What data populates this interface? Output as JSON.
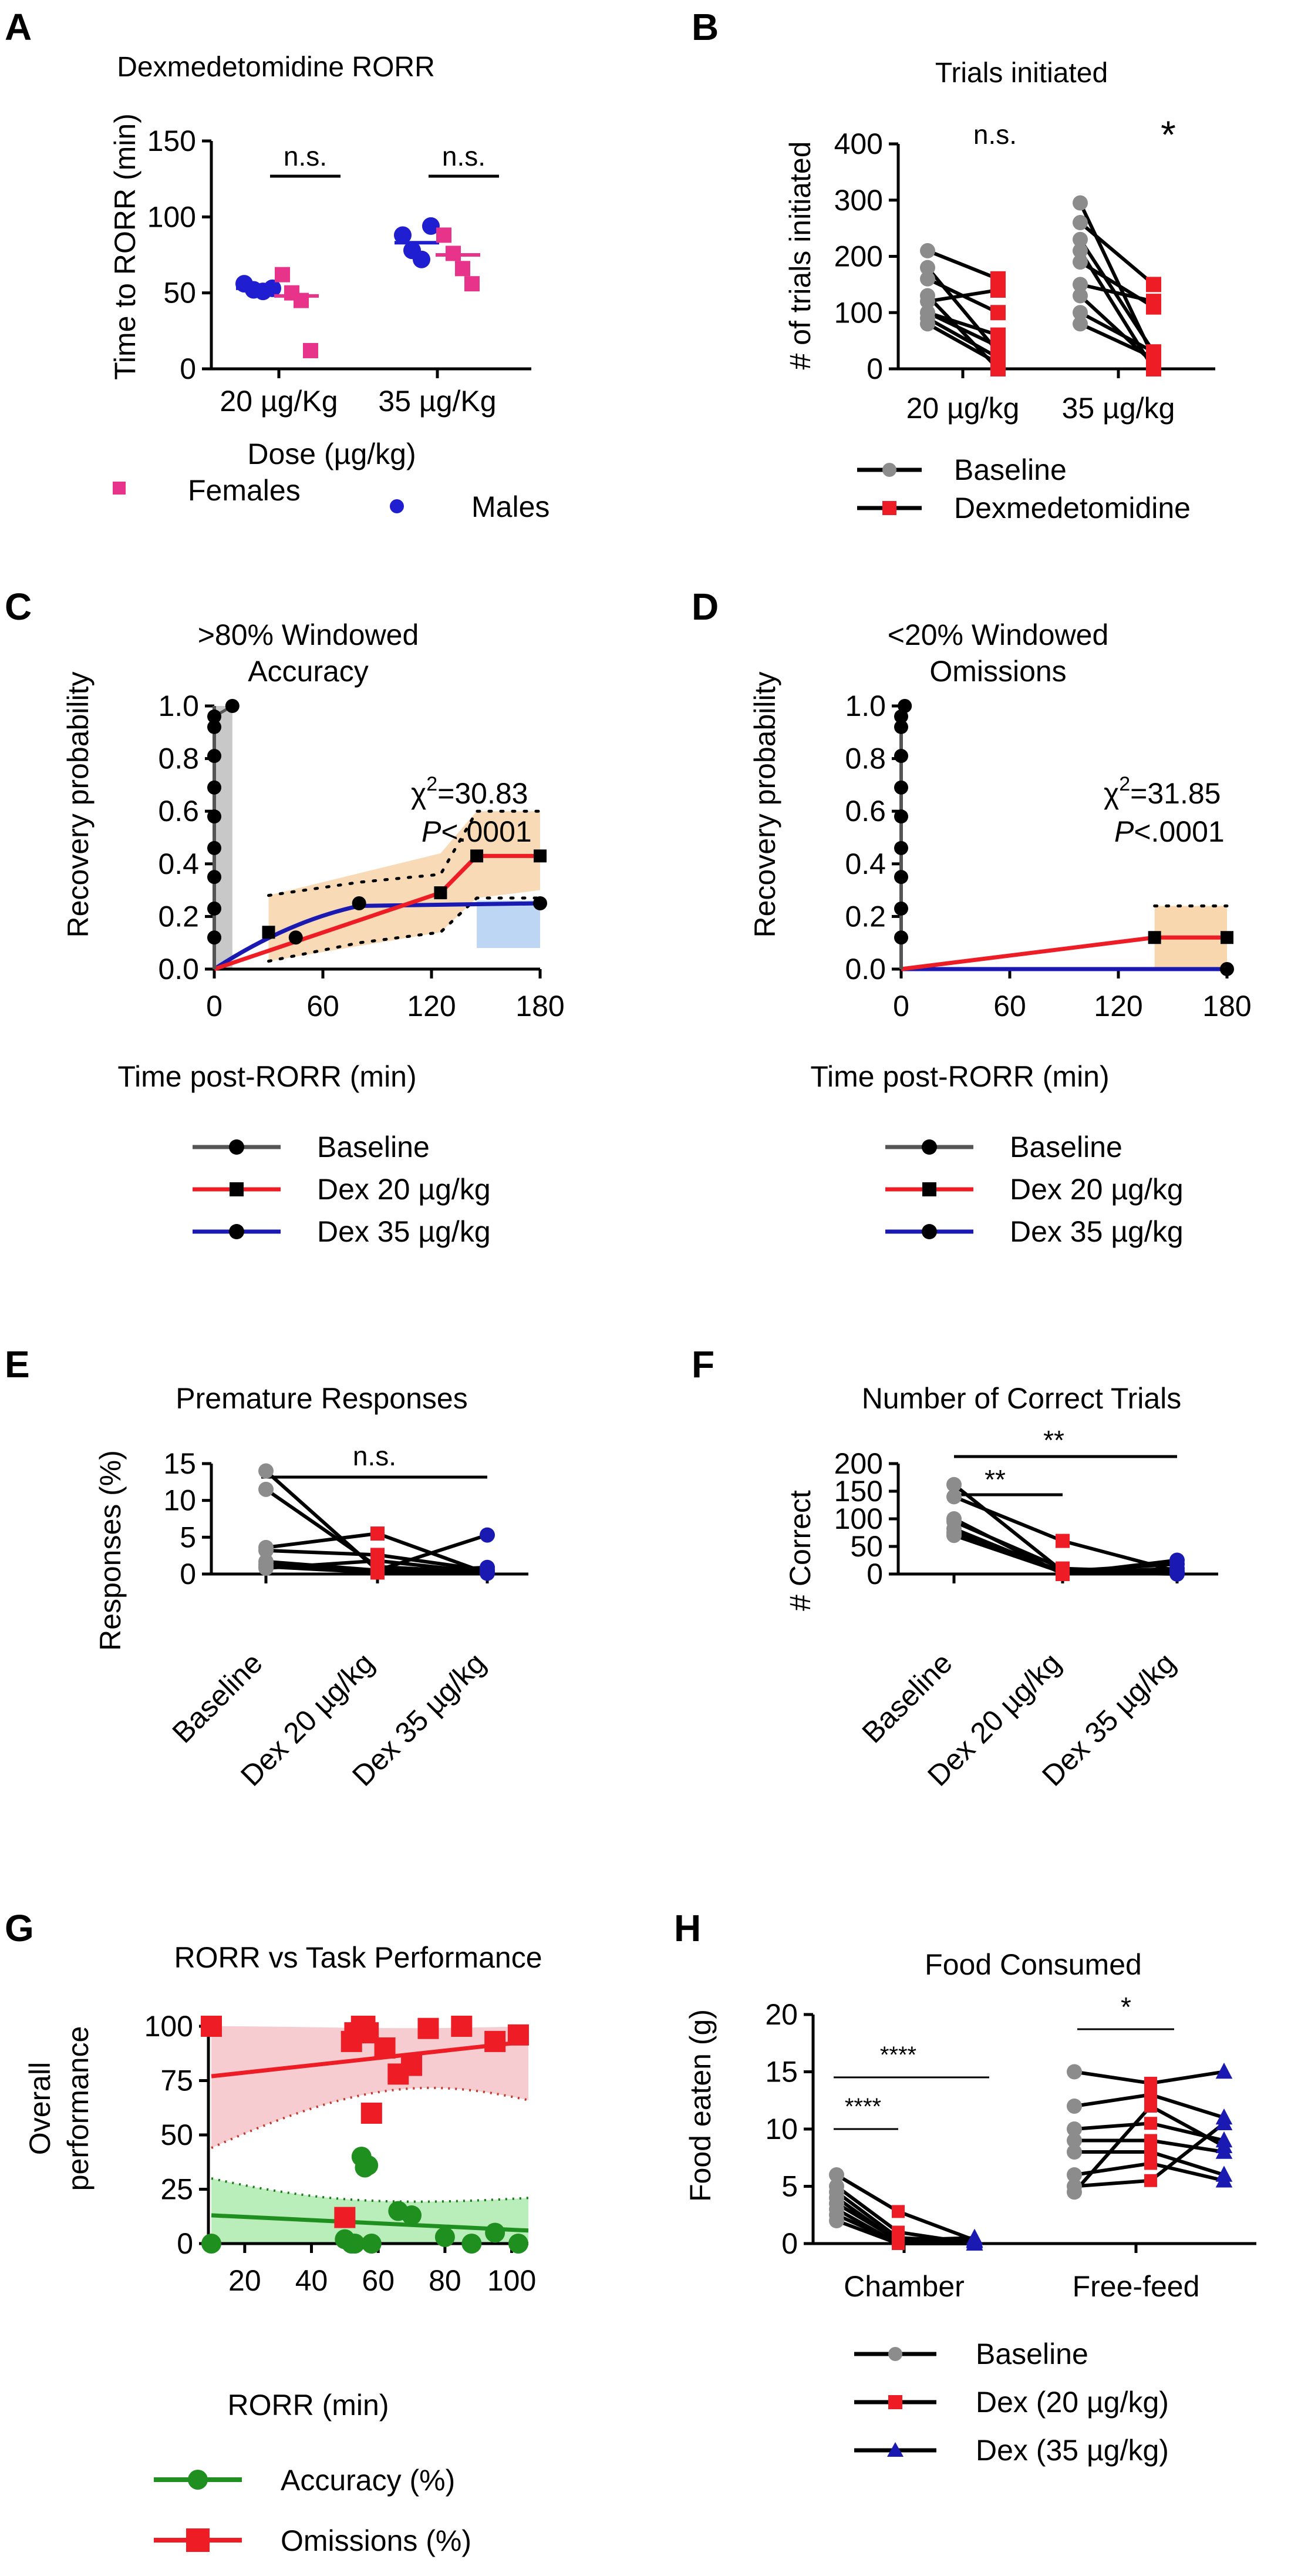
{
  "colors": {
    "female": "#e8338a",
    "male": "#1f1fd1",
    "baseline": "#8c8c8c",
    "dex": "#ee1c24",
    "dex35": "#1a1ab3",
    "green": "#1f8f1f",
    "green_band": "#b5ecb5",
    "pink_band": "#f6c9cf",
    "orange_band": "#f8d6ae",
    "blue_band": "#bcd6f4"
  },
  "chart_data": [
    {
      "panel": "A",
      "type": "scatter",
      "title": "Dexmedetomidine RORR",
      "xlabel": "Dose (µg/kg)",
      "ylabel": "Time to RORR (min)",
      "categories": [
        "20 µg/Kg",
        "35 µg/Kg"
      ],
      "ylim": [
        0,
        150
      ],
      "yticks": [
        "0",
        "50",
        "100",
        "150"
      ],
      "series": [
        {
          "name": "Males",
          "values": [
            [
              56,
              52,
              51,
              53
            ],
            [
              88,
              78,
              72,
              94
            ]
          ],
          "means": [
            53,
            83
          ]
        },
        {
          "name": "Females",
          "values": [
            [
              62,
              50,
              45,
              12
            ],
            [
              88,
              76,
              66,
              56
            ]
          ],
          "means": [
            48,
            75
          ]
        }
      ],
      "significance": [
        "n.s.",
        "n.s."
      ],
      "legend": {
        "females": "Females",
        "males": "Males"
      }
    },
    {
      "panel": "B",
      "type": "line",
      "title": "Trials initiated",
      "ylabel": "# of trials initiated",
      "categories": [
        "20 µg/kg",
        "35 µg/kg"
      ],
      "ylim": [
        0,
        400
      ],
      "yticks": [
        "0",
        "100",
        "200",
        "300",
        "400"
      ],
      "pairs": [
        [
          [
            210,
            160
          ],
          [
            180,
            30
          ],
          [
            160,
            100
          ],
          [
            130,
            0
          ],
          [
            120,
            140
          ],
          [
            100,
            60
          ],
          [
            100,
            40
          ],
          [
            90,
            20
          ],
          [
            80,
            10
          ]
        ],
        [
          [
            295,
            20
          ],
          [
            260,
            150
          ],
          [
            230,
            30
          ],
          [
            210,
            0
          ],
          [
            190,
            110
          ],
          [
            150,
            120
          ],
          [
            130,
            10
          ],
          [
            100,
            30
          ],
          [
            80,
            20
          ]
        ]
      ],
      "significance": [
        "n.s.",
        "*"
      ],
      "legend": [
        "Baseline",
        "Dexmedetomidine"
      ]
    },
    {
      "panel": "C",
      "type": "line",
      "title": ">80% Windowed",
      "title2": "Accuracy",
      "xlabel": "Time post-RORR (min)",
      "ylabel": "Recovery probability",
      "xlim": [
        0,
        180
      ],
      "ylim": [
        0,
        1.0
      ],
      "xticks": [
        "0",
        "60",
        "120",
        "180"
      ],
      "yticks": [
        "0.0",
        "0.2",
        "0.4",
        "0.6",
        "0.8",
        "1.0"
      ],
      "stat_chi": "χ",
      "stat_sup": "2",
      "stat_value": "=30.83",
      "stat_p": "P",
      "stat_pvalue": "<.0001",
      "series": [
        {
          "name": "Baseline",
          "x": [
            0,
            0,
            0,
            0,
            0,
            0,
            0,
            0,
            0,
            10
          ],
          "y": [
            0.12,
            0.23,
            0.35,
            0.46,
            0.58,
            0.69,
            0.81,
            0.92,
            0.96,
            1.0
          ]
        },
        {
          "name": "Dex 20 µg/kg",
          "x": [
            0,
            30,
            125,
            145,
            180
          ],
          "y": [
            0,
            0.14,
            0.29,
            0.43,
            0.43
          ]
        },
        {
          "name": "Dex 35 µg/kg",
          "x": [
            0,
            45,
            80,
            180
          ],
          "y": [
            0,
            0.12,
            0.25,
            0.25
          ]
        }
      ],
      "legend": [
        "Baseline",
        "Dex 20 µg/kg",
        "Dex 35 µg/kg"
      ]
    },
    {
      "panel": "D",
      "type": "line",
      "title": "<20% Windowed",
      "title2": "Omissions",
      "xlabel": "Time post-RORR (min)",
      "ylabel": "Recovery probability",
      "xlim": [
        0,
        180
      ],
      "ylim": [
        0,
        1.0
      ],
      "xticks": [
        "0",
        "60",
        "120",
        "180"
      ],
      "yticks": [
        "0.0",
        "0.2",
        "0.4",
        "0.6",
        "0.8",
        "1.0"
      ],
      "stat_chi": "χ",
      "stat_sup": "2",
      "stat_value": "=31.85",
      "stat_p": "P",
      "stat_pvalue": "<.0001",
      "series": [
        {
          "name": "Baseline",
          "x": [
            0,
            0,
            0,
            0,
            0,
            0,
            0,
            0,
            0,
            2
          ],
          "y": [
            0.12,
            0.23,
            0.35,
            0.46,
            0.58,
            0.69,
            0.81,
            0.92,
            0.96,
            1.0
          ]
        },
        {
          "name": "Dex 20 µg/kg",
          "x": [
            0,
            140,
            180
          ],
          "y": [
            0,
            0.12,
            0.12
          ]
        },
        {
          "name": "Dex 35 µg/kg",
          "x": [
            0,
            180
          ],
          "y": [
            0,
            0
          ]
        }
      ],
      "legend": [
        "Baseline",
        "Dex 20 µg/kg",
        "Dex 35 µg/kg"
      ]
    },
    {
      "panel": "E",
      "type": "line",
      "title": "Premature Responses",
      "ylabel": "Responses (%)",
      "categories": [
        "Baseline",
        "Dex 20 µg/kg",
        "Dex 35 µg/kg"
      ],
      "ylim": [
        0,
        15
      ],
      "yticks": [
        "0",
        "5",
        "10",
        "15"
      ],
      "subjects": [
        [
          14.0,
          0.5,
          0.3
        ],
        [
          11.5,
          1.0,
          0.2
        ],
        [
          3.6,
          5.5,
          0.1
        ],
        [
          3.2,
          2.6,
          0.5
        ],
        [
          1.7,
          0.5,
          5.3
        ],
        [
          1.3,
          0.3,
          0.5
        ],
        [
          1.0,
          0.2,
          0.9
        ],
        [
          0.8,
          1.8,
          0.2
        ]
      ],
      "significance": [
        "n.s."
      ]
    },
    {
      "panel": "F",
      "type": "line",
      "title": "Number of Correct Trials",
      "ylabel": "# Correct",
      "categories": [
        "Baseline",
        "Dex 20 µg/kg",
        "Dex 35 µg/kg"
      ],
      "ylim": [
        0,
        200
      ],
      "yticks": [
        "0",
        "50",
        "100",
        "150",
        "200"
      ],
      "subjects": [
        [
          162,
          5,
          2
        ],
        [
          140,
          60,
          5
        ],
        [
          100,
          0,
          25
        ],
        [
          95,
          10,
          3
        ],
        [
          82,
          2,
          10
        ],
        [
          75,
          5,
          18
        ],
        [
          70,
          3,
          0
        ]
      ],
      "significance": [
        "**",
        "**"
      ]
    },
    {
      "panel": "G",
      "type": "scatter",
      "title": "RORR vs Task Performance",
      "xlabel": "RORR (min)",
      "ylabel": "Overall",
      "ylabel2": "performance",
      "xlim": [
        10,
        105
      ],
      "ylim": [
        0,
        100
      ],
      "xticks": [
        "20",
        "40",
        "60",
        "80",
        "100"
      ],
      "yticks": [
        "0",
        "25",
        "50",
        "75",
        "100"
      ],
      "series": [
        {
          "name": "Accuracy (%)",
          "x": [
            10,
            50,
            52,
            53,
            55,
            56,
            57,
            58,
            66,
            70,
            80,
            88,
            95,
            102
          ],
          "y": [
            0,
            2,
            0,
            0,
            40,
            35,
            36,
            0,
            15,
            13,
            3,
            0,
            5,
            0
          ],
          "fit": [
            13,
            6
          ]
        },
        {
          "name": "Omissions (%)",
          "x": [
            10,
            50,
            52,
            53,
            55,
            56,
            57,
            58,
            62,
            66,
            70,
            75,
            85,
            95,
            102
          ],
          "y": [
            100,
            12,
            93,
            97,
            100,
            100,
            97,
            60,
            90,
            78,
            82,
            99,
            100,
            93,
            96
          ],
          "fit": [
            77,
            93
          ]
        }
      ],
      "legend": [
        "Accuracy (%)",
        "Omissions (%)"
      ]
    },
    {
      "panel": "H",
      "type": "line",
      "title": "Food Consumed",
      "ylabel": "Food eaten (g)",
      "categories": [
        "Chamber",
        "Free-feed"
      ],
      "groups": [
        "Baseline",
        "Dex (20 µg/kg)",
        "Dex (35 µg/kg)"
      ],
      "ylim": [
        0,
        20
      ],
      "yticks": [
        "0",
        "5",
        "10",
        "15",
        "20"
      ],
      "chamber": [
        [
          6.0,
          2.8,
          0.3
        ],
        [
          5.0,
          1.0,
          0.0
        ],
        [
          4.5,
          0.5,
          0.2
        ],
        [
          4.0,
          0.2,
          0.0
        ],
        [
          3.5,
          0.3,
          0.5
        ],
        [
          3.0,
          0.0,
          0.0
        ],
        [
          2.5,
          0.1,
          0.2
        ],
        [
          2.0,
          0.0,
          0.0
        ]
      ],
      "freefeed": [
        [
          15.0,
          14.0,
          15.0
        ],
        [
          12.0,
          13.0,
          11.0
        ],
        [
          10.0,
          10.5,
          9.0
        ],
        [
          9.0,
          9.0,
          8.0
        ],
        [
          8.0,
          8.0,
          6.0
        ],
        [
          6.0,
          7.0,
          5.5
        ],
        [
          5.0,
          5.5,
          10.5
        ],
        [
          4.5,
          12.0,
          8.5
        ]
      ],
      "significance": [
        "****",
        "****",
        "*"
      ],
      "legend": [
        "Baseline",
        "Dex (20 µg/kg)",
        "Dex (35 µg/kg)"
      ]
    }
  ]
}
